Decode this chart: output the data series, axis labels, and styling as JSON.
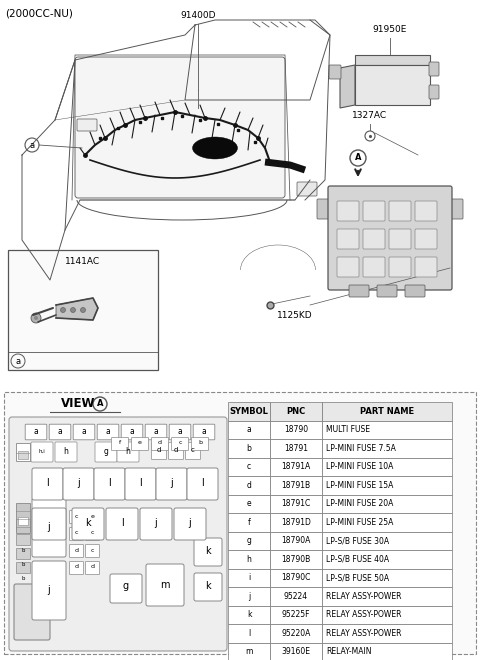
{
  "title_text": "(2000CC-NU)",
  "label_91400D": "91400D",
  "label_91950E": "91950E",
  "label_1327AC": "1327AC",
  "label_1125KD": "1125KD",
  "label_1141AC": "1141AC",
  "table_headers": [
    "SYMBOL",
    "PNC",
    "PART NAME"
  ],
  "table_rows": [
    [
      "a",
      "18790",
      "MULTI FUSE"
    ],
    [
      "b",
      "18791",
      "LP-MINI FUSE 7.5A"
    ],
    [
      "c",
      "18791A",
      "LP-MINI FUSE 10A"
    ],
    [
      "d",
      "18791B",
      "LP-MINI FUSE 15A"
    ],
    [
      "e",
      "18791C",
      "LP-MINI FUSE 20A"
    ],
    [
      "f",
      "18791D",
      "LP-MINI FUSE 25A"
    ],
    [
      "g",
      "18790A",
      "LP-S/B FUSE 30A"
    ],
    [
      "h",
      "18790B",
      "LP-S/B FUSE 40A"
    ],
    [
      "i",
      "18790C",
      "LP-S/B FUSE 50A"
    ],
    [
      "j",
      "95224",
      "RELAY ASSY-POWER"
    ],
    [
      "k",
      "95225F",
      "RELAY ASSY-POWER"
    ],
    [
      "l",
      "95220A",
      "RELAY ASSY-POWER"
    ],
    [
      "m",
      "39160E",
      "RELAY-MAIN"
    ]
  ],
  "bg_color": "#ffffff",
  "line_color": "#555555",
  "text_color": "#000000"
}
